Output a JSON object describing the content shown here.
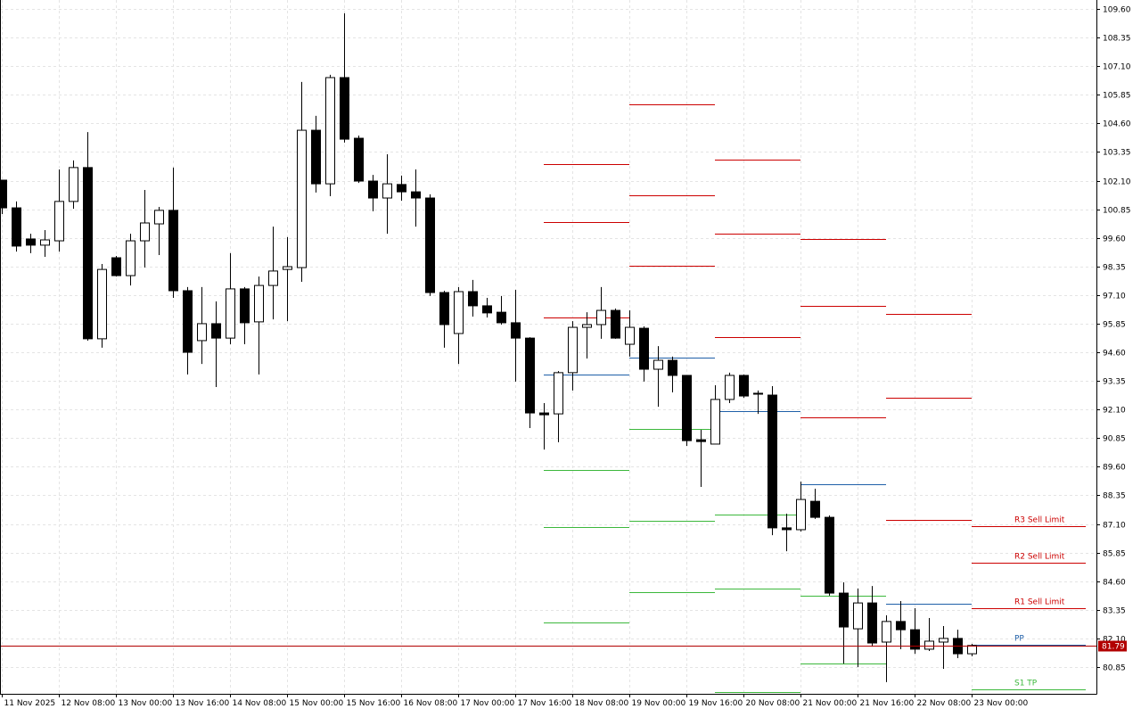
{
  "chart_data": {
    "type": "candlestick",
    "categories": [
      "11 Nov 2025",
      null,
      null,
      null,
      "12 Nov 08:00",
      null,
      null,
      null,
      "13 Nov 00:00",
      null,
      null,
      null,
      "13 Nov 16:00",
      null,
      null,
      null,
      "14 Nov 08:00",
      null,
      null,
      null,
      "15 Nov 00:00",
      null,
      null,
      null,
      "15 Nov 16:00",
      null,
      null,
      null,
      "16 Nov 08:00",
      null,
      null,
      null,
      "17 Nov 00:00",
      null,
      null,
      null,
      "17 Nov 16:00",
      null,
      null,
      null,
      "18 Nov 08:00",
      null,
      null,
      null,
      "19 Nov 00:00",
      null,
      null,
      null,
      "19 Nov 16:00",
      null,
      null,
      null,
      "20 Nov 08:00",
      null,
      null,
      null,
      "21 Nov 00:00",
      null,
      null,
      null,
      "21 Nov 16:00",
      null,
      null,
      null,
      "22 Nov 08:00",
      null,
      null,
      null,
      "23 Nov 00:00"
    ],
    "open": [
      102.12,
      100.91,
      99.55,
      99.28,
      99.47,
      101.19,
      102.67,
      95.19,
      98.73,
      97.95,
      99.47,
      100.21,
      100.8,
      97.29,
      95.11,
      95.85,
      95.22,
      97.37,
      95.93,
      97.52,
      98.22,
      98.3,
      104.3,
      101.96,
      106.6,
      103.95,
      102.08,
      101.34,
      101.93,
      101.61,
      101.34,
      97.21,
      95.42,
      97.25,
      96.63,
      96.35,
      95.89,
      95.22,
      91.95,
      91.91,
      93.71,
      95.69,
      95.81,
      96.43,
      94.95,
      95.65,
      93.86,
      94.25,
      93.59,
      90.78,
      90.59,
      92.54,
      93.59,
      92.81,
      92.73,
      86.93,
      86.85,
      88.09,
      87.39,
      84.08,
      82.52,
      83.65,
      81.94,
      82.84,
      82.48,
      81.63,
      81.94,
      82.1,
      81.43
    ],
    "high": [
      102.12,
      101.19,
      99.78,
      99.94,
      102.59,
      102.98,
      104.22,
      98.46,
      98.81,
      99.78,
      101.69,
      100.95,
      102.67,
      97.45,
      97.45,
      96.82,
      98.93,
      97.45,
      97.91,
      100.09,
      99.63,
      106.41,
      104.93,
      106.72,
      109.41,
      104.07,
      102.35,
      103.25,
      102.32,
      102.59,
      101.5,
      97.29,
      97.45,
      97.76,
      96.98,
      97.06,
      97.33,
      95.26,
      92.38,
      93.78,
      95.96,
      96.35,
      97.45,
      96.51,
      96.43,
      95.73,
      94.87,
      94.41,
      93.59,
      91.21,
      93.16,
      93.71,
      93.63,
      92.93,
      93.12,
      87.55,
      88.95,
      88.64,
      87.47,
      84.55,
      84.28,
      84.39,
      83.11,
      83.73,
      83.42,
      82.99,
      82.64,
      82.48,
      81.86
    ],
    "low": [
      100.64,
      99.0,
      98.93,
      98.77,
      99.0,
      100.87,
      95.11,
      94.8,
      97.91,
      97.52,
      98.3,
      98.85,
      96.98,
      93.63,
      94.09,
      93.08,
      94.95,
      94.95,
      93.63,
      96.04,
      95.96,
      97.68,
      101.58,
      101.42,
      103.76,
      102.0,
      100.76,
      99.78,
      101.22,
      100.09,
      97.06,
      94.8,
      94.09,
      96.16,
      96.12,
      95.81,
      93.32,
      91.29,
      90.35,
      90.67,
      92.93,
      94.33,
      95.19,
      95.19,
      94.41,
      93.32,
      92.22,
      92.85,
      90.51,
      88.72,
      90.59,
      92.38,
      92.61,
      91.91,
      86.61,
      85.91,
      86.77,
      87.32,
      83.97,
      81.0,
      80.85,
      81.74,
      80.19,
      81.63,
      81.43,
      81.55,
      80.77,
      81.24,
      81.32
    ],
    "close": [
      100.91,
      99.24,
      99.28,
      99.51,
      101.19,
      102.67,
      95.19,
      98.22,
      97.95,
      99.47,
      100.25,
      100.8,
      97.29,
      94.6,
      95.85,
      95.22,
      97.37,
      95.89,
      97.52,
      98.15,
      98.34,
      104.3,
      101.96,
      106.6,
      103.91,
      102.08,
      101.34,
      101.96,
      101.61,
      101.34,
      97.21,
      95.81,
      97.25,
      96.63,
      96.32,
      95.89,
      95.22,
      91.95,
      91.87,
      93.71,
      95.69,
      95.81,
      96.43,
      95.22,
      95.69,
      93.86,
      94.25,
      93.59,
      90.74,
      90.7,
      92.54,
      93.59,
      92.69,
      92.77,
      86.93,
      86.85,
      88.17,
      87.39,
      84.08,
      82.6,
      83.65,
      81.9,
      82.84,
      82.48,
      81.63,
      81.98,
      82.1,
      81.43,
      81.79
    ],
    "colors": {
      "up": "#ffffff",
      "down": "#000000",
      "outline": "#000000",
      "resistance": "#cc0000",
      "pivot": "#1f5fa8",
      "support": "#3cb83c",
      "current": "#b20000"
    },
    "current_price": 81.79,
    "pivots": [
      {
        "x": [
          38,
          44
        ],
        "levels": [
          {
            "value": 102.82,
            "role": "resistance"
          },
          {
            "value": 100.29,
            "role": "resistance"
          },
          {
            "value": 96.12,
            "role": "resistance"
          },
          {
            "value": 93.63,
            "role": "pivot"
          },
          {
            "value": 89.46,
            "role": "support"
          },
          {
            "value": 86.97,
            "role": "support"
          },
          {
            "value": 82.8,
            "role": "support"
          }
        ]
      },
      {
        "x": [
          44,
          50
        ],
        "levels": [
          {
            "value": 105.43,
            "role": "resistance"
          },
          {
            "value": 101.46,
            "role": "resistance"
          },
          {
            "value": 98.38,
            "role": "resistance"
          },
          {
            "value": 94.37,
            "role": "pivot"
          },
          {
            "value": 91.25,
            "role": "support"
          },
          {
            "value": 87.24,
            "role": "support"
          },
          {
            "value": 84.12,
            "role": "support"
          }
        ]
      },
      {
        "x": [
          50,
          56
        ],
        "levels": [
          {
            "value": 103.02,
            "role": "resistance"
          },
          {
            "value": 99.78,
            "role": "resistance"
          },
          {
            "value": 95.26,
            "role": "resistance"
          },
          {
            "value": 92.03,
            "role": "pivot"
          },
          {
            "value": 87.51,
            "role": "support"
          },
          {
            "value": 84.28,
            "role": "support"
          },
          {
            "value": 79.76,
            "role": "support"
          }
        ]
      },
      {
        "x": [
          56,
          62
        ],
        "levels": [
          {
            "value": 99.55,
            "role": "resistance"
          },
          {
            "value": 96.63,
            "role": "resistance"
          },
          {
            "value": 91.76,
            "role": "resistance"
          },
          {
            "value": 88.83,
            "role": "pivot"
          },
          {
            "value": 83.97,
            "role": "support"
          },
          {
            "value": 81.0,
            "role": "support"
          }
        ]
      },
      {
        "x": [
          62,
          68
        ],
        "levels": [
          {
            "value": 96.28,
            "role": "resistance"
          },
          {
            "value": 92.61,
            "role": "resistance"
          },
          {
            "value": 87.28,
            "role": "resistance"
          },
          {
            "value": 83.61,
            "role": "pivot"
          }
        ]
      },
      {
        "x": [
          68,
          76
        ],
        "levels": [
          {
            "value": 87.0,
            "role": "resistance",
            "label": "R3 Sell Limit"
          },
          {
            "value": 85.41,
            "role": "resistance",
            "label": "R2 Sell Limit"
          },
          {
            "value": 83.42,
            "role": "resistance",
            "label": "R1 Sell Limit"
          },
          {
            "value": 81.82,
            "role": "pivot",
            "label": "PP"
          },
          {
            "value": 79.87,
            "role": "support",
            "label": "S1 TP"
          }
        ]
      }
    ],
    "ylim": [
      79.68,
      109.99
    ],
    "yticks": [
      {
        "value": 109.6,
        "label": "109.60"
      },
      108.35,
      {
        "value": 107.1,
        "label": "107.10"
      },
      105.85,
      {
        "value": 104.6,
        "label": "104.60"
      },
      103.35,
      {
        "value": 102.1,
        "label": "102.10"
      },
      100.85,
      {
        "value": 99.6,
        "label": "99.60"
      },
      98.35,
      {
        "value": 97.1,
        "label": "97.10"
      },
      95.85,
      {
        "value": 94.6,
        "label": "94.60"
      },
      93.35,
      {
        "value": 92.1,
        "label": "92.10"
      },
      90.85,
      {
        "value": 89.6,
        "label": "89.60"
      },
      88.35,
      {
        "value": 87.1,
        "label": "87.10"
      },
      85.85,
      {
        "value": 84.6,
        "label": "84.60"
      },
      83.35,
      {
        "value": 82.1,
        "label": "82.10"
      },
      80.85
    ],
    "grid": true
  }
}
